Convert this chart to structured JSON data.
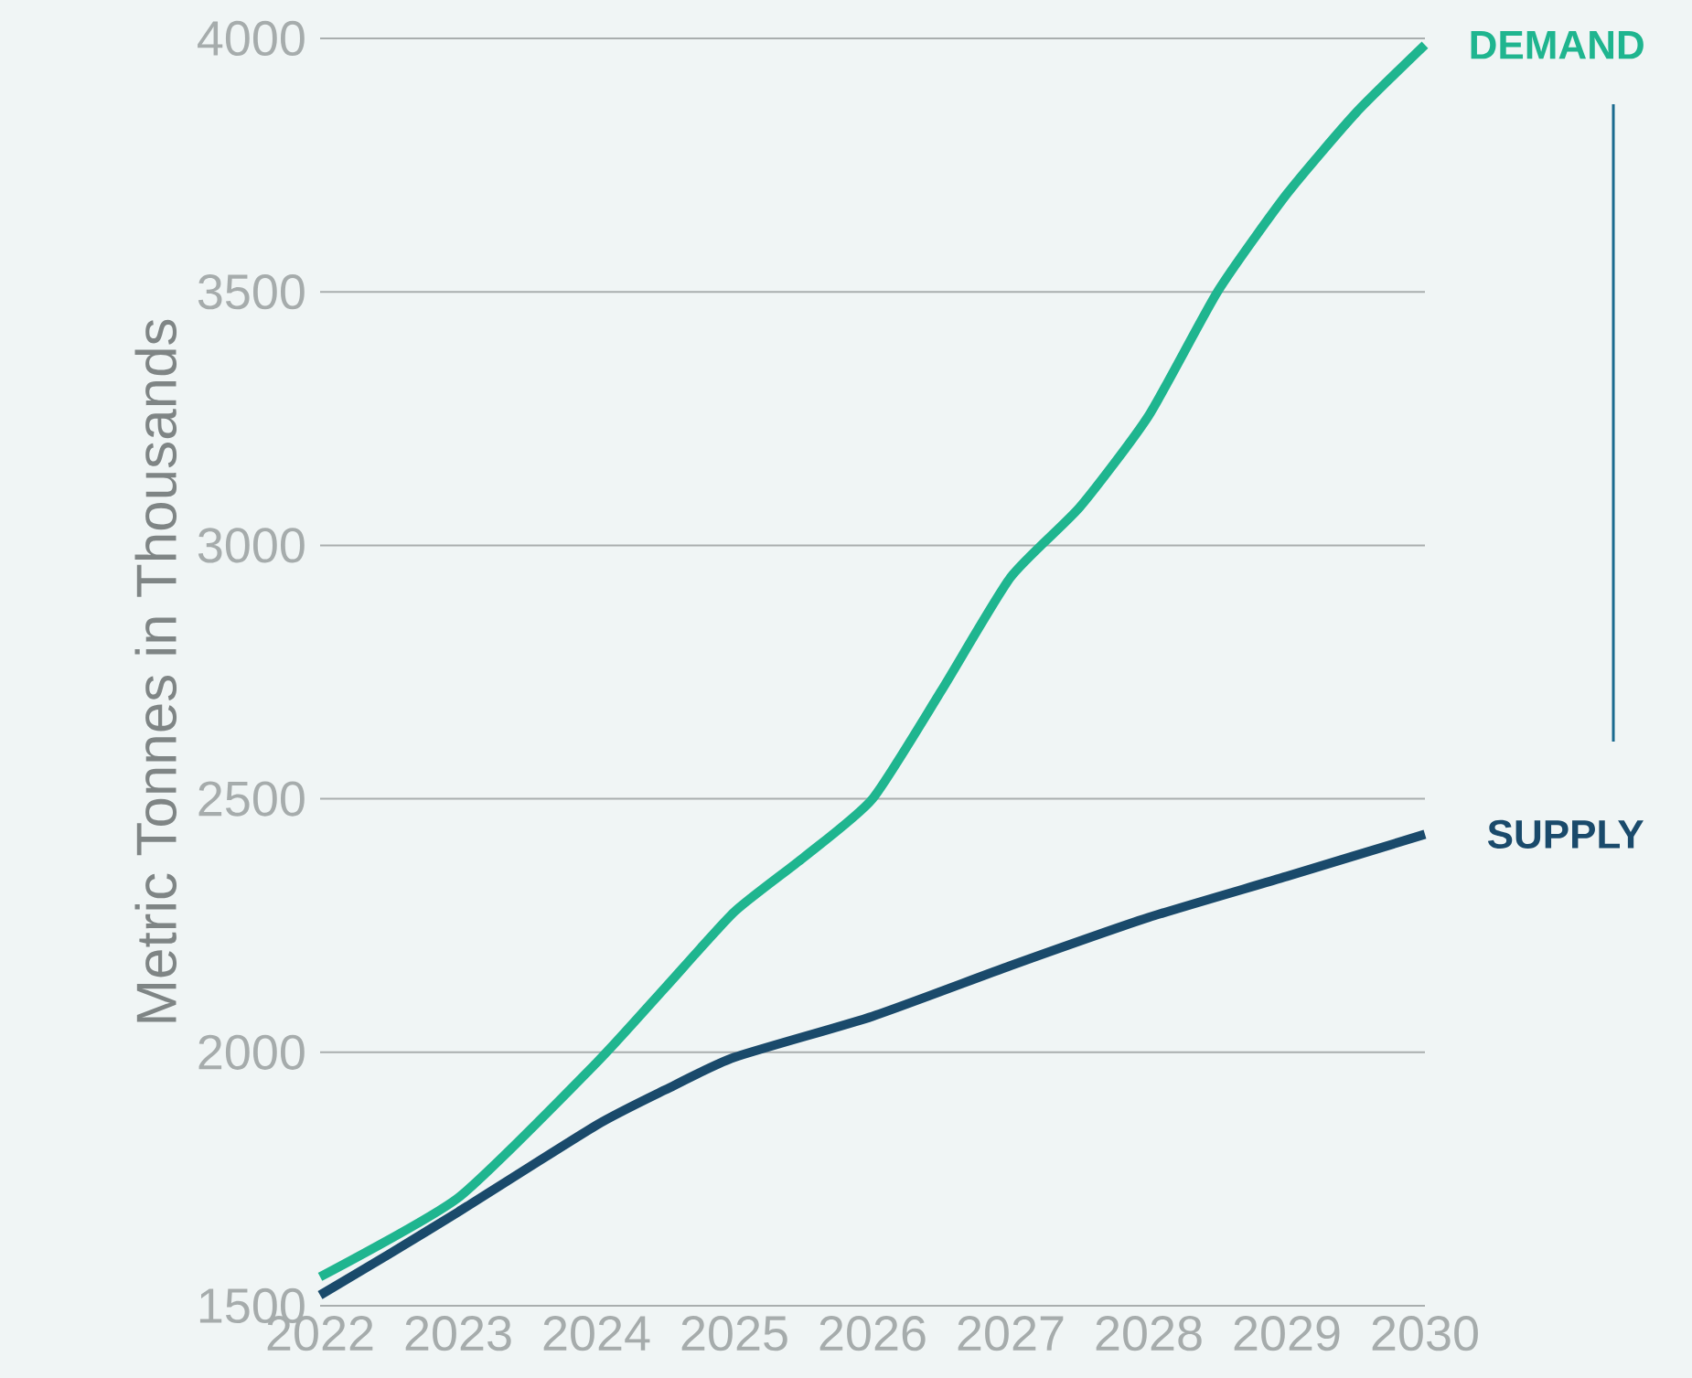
{
  "chart_data": {
    "type": "line",
    "ylabel": "Metric Tonnes in Thousands",
    "xlim": [
      2022,
      2030
    ],
    "xticks": [
      2022,
      2023,
      2024,
      2025,
      2026,
      2027,
      2028,
      2029,
      2030
    ],
    "ylim": [
      1500,
      4000
    ],
    "yticks": [
      1500,
      2000,
      2500,
      3000,
      3500,
      4000
    ],
    "grid": "y",
    "series": [
      {
        "name": "DEMAND",
        "color": "#1fb58f",
        "x": [
          2022,
          2023,
          2024,
          2024.5,
          2025,
          2025.5,
          2026,
          2026.5,
          2027,
          2027.5,
          2028,
          2028.5,
          2029,
          2029.5,
          2030
        ],
        "values": [
          1557,
          1713,
          1979,
          2128,
          2277,
          2384,
          2500,
          2714,
          2937,
          3075,
          3256,
          3501,
          3693,
          3853,
          3987
        ]
      },
      {
        "name": "SUPPLY",
        "color": "#1a4a6b",
        "x": [
          2022,
          2022.5,
          2023,
          2024,
          2024.5,
          2025,
          2026,
          2027,
          2028,
          2029,
          2030
        ],
        "values": [
          1521,
          1602,
          1685,
          1856,
          1926,
          1990,
          2071,
          2171,
          2266,
          2347,
          2430
        ]
      }
    ]
  }
}
